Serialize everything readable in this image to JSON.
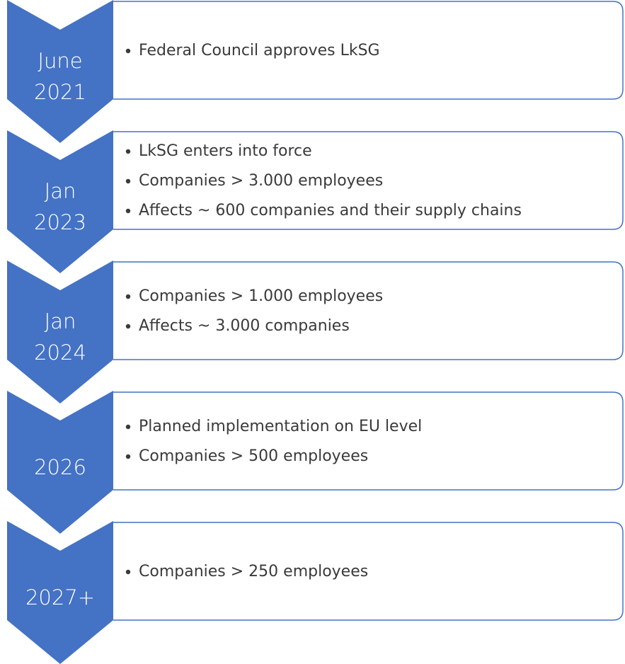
{
  "items": [
    {
      "label": [
        "June",
        "2021"
      ],
      "bullets": [
        "Federal Council approves LkSG"
      ]
    },
    {
      "label": [
        "Jan",
        "2023"
      ],
      "bullets": [
        "LkSG enters into force",
        "Companies > 3.000 employees",
        "Affects ~ 600 companies and their supply chains"
      ]
    },
    {
      "label": [
        "Jan",
        "2024"
      ],
      "bullets": [
        "Companies > 1.000 employees",
        "Affects ~ 3.000 companies"
      ]
    },
    {
      "label": [
        "2026"
      ],
      "bullets": [
        "Planned implementation on EU level",
        "Companies > 500 employees"
      ]
    },
    {
      "label": [
        "2027+"
      ],
      "bullets": [
        "Companies > 250 employees"
      ]
    }
  ]
}
